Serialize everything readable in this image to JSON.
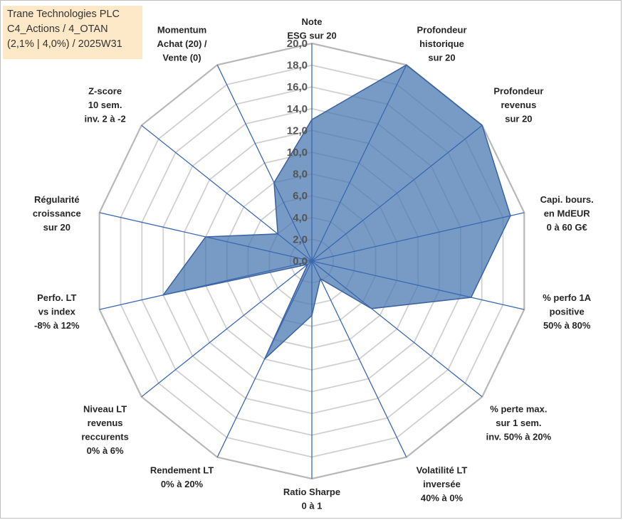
{
  "title_lines": [
    "Trane Technologies PLC",
    "C4_Actions / 4_OTAN",
    "(2,1% | 4,0%) / 2025W31"
  ],
  "colors": {
    "fill": "#4a7ab0",
    "fill_opacity": 0.75,
    "stroke": "#3a62a0",
    "axis": "#3b68b0",
    "grid": "#d0d0d0",
    "title_bg": "#fde9c8"
  },
  "chart_data": {
    "type": "radar",
    "rmin": 0,
    "rmax": 20,
    "tick_step": 2,
    "tick_labels": [
      "0,0",
      "2,0",
      "4,0",
      "6,0",
      "8,0",
      "10,0",
      "12,0",
      "14,0",
      "16,0",
      "18,0",
      "20,0"
    ],
    "axes": [
      {
        "label_lines": [
          "Note",
          "ESG sur 20"
        ]
      },
      {
        "label_lines": [
          "Profondeur",
          "historique",
          "sur 20"
        ]
      },
      {
        "label_lines": [
          "Profondeur",
          "revenus",
          "sur 20"
        ]
      },
      {
        "label_lines": [
          "Capi. bours.",
          "en MdEUR",
          "0 à 60 G€"
        ]
      },
      {
        "label_lines": [
          "% perfo 1A",
          "positive",
          "50% à 80%"
        ]
      },
      {
        "label_lines": [
          "% perte max.",
          "sur 1 sem.",
          "inv. 50% à 20%"
        ]
      },
      {
        "label_lines": [
          "Volatilité LT",
          "inversée",
          "40% à 0%"
        ]
      },
      {
        "label_lines": [
          "Ratio Sharpe",
          "0 à 1"
        ]
      },
      {
        "label_lines": [
          "Rendement LT",
          "0% à 20%"
        ]
      },
      {
        "label_lines": [
          "Niveau LT",
          "revenus",
          "reccurents",
          "0% à 6%"
        ]
      },
      {
        "label_lines": [
          "Perfo. LT",
          "vs index",
          "-8% à 12%"
        ]
      },
      {
        "label_lines": [
          "Régularité",
          "croissance",
          "sur 20"
        ]
      },
      {
        "label_lines": [
          "Z-score",
          "10 sem.",
          "inv. 2 à -2"
        ]
      },
      {
        "label_lines": [
          "Momentum",
          "Achat (20) /",
          "Vente (0)"
        ]
      }
    ],
    "values": [
      13.0,
      20.0,
      20.0,
      18.7,
      15.0,
      7.0,
      1.8,
      5.0,
      10.0,
      0.5,
      14.0,
      10.0,
      4.0,
      8.0
    ]
  }
}
